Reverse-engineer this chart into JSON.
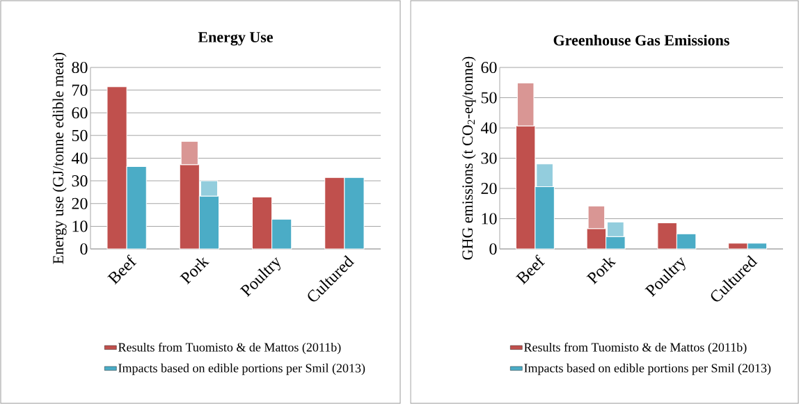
{
  "chart_data": [
    {
      "type": "bar",
      "title": "Energy Use",
      "ylabel": "Energy use (GJ/tonne edible meat)",
      "categories": [
        "Beef",
        "Pork",
        "Poultry",
        "Cultured"
      ],
      "ylim": [
        0,
        80
      ],
      "yticks": [
        0,
        10,
        20,
        30,
        40,
        50,
        60,
        70,
        80
      ],
      "grid": "y",
      "legend": "bottom",
      "series": [
        {
          "name": "Results from Tuomisto & de Mattos (2011b)",
          "color": "#c0504d",
          "values": [
            71.5,
            37.2,
            22.9,
            31.5
          ]
        },
        {
          "color": "#d99694",
          "values": [
            null,
            10.2,
            null,
            null
          ],
          "base": [
            null,
            37.2,
            null,
            null
          ]
        },
        {
          "name": "Impacts based on edible portions per Smil (2013)",
          "color": "#4bacc6",
          "values": [
            36.3,
            23.3,
            13.1,
            31.5
          ]
        },
        {
          "color": "#93cddd",
          "values": [
            null,
            6.7,
            null,
            null
          ],
          "base": [
            null,
            23.3,
            null,
            null
          ]
        }
      ]
    },
    {
      "type": "bar",
      "title": "Greenhouse Gas Emissions",
      "ylabel": "GHG emissions (t CO$_{2}$-eq/tonne)",
      "categories": [
        "Beef",
        "Pork",
        "Poultry",
        "Cultured"
      ],
      "ylim": [
        0,
        60
      ],
      "yticks": [
        0,
        10,
        20,
        30,
        40,
        50,
        60
      ],
      "grid": "y",
      "legend": "bottom",
      "series": [
        {
          "name": "Results from Tuomisto & de Mattos (2011b)",
          "color": "#c0504d",
          "values": [
            40.7,
            6.7,
            8.6,
            1.9
          ]
        },
        {
          "color": "#d99694",
          "values": [
            14.2,
            7.5,
            null,
            null
          ],
          "base": [
            40.7,
            6.7,
            null,
            null
          ]
        },
        {
          "name": "Impacts based on edible portions per Smil (2013)",
          "color": "#4bacc6",
          "values": [
            20.6,
            4.1,
            5.0,
            1.9
          ]
        },
        {
          "color": "#93cddd",
          "values": [
            7.5,
            4.8,
            null,
            null
          ],
          "base": [
            20.6,
            4.1,
            null,
            null
          ]
        }
      ]
    }
  ]
}
